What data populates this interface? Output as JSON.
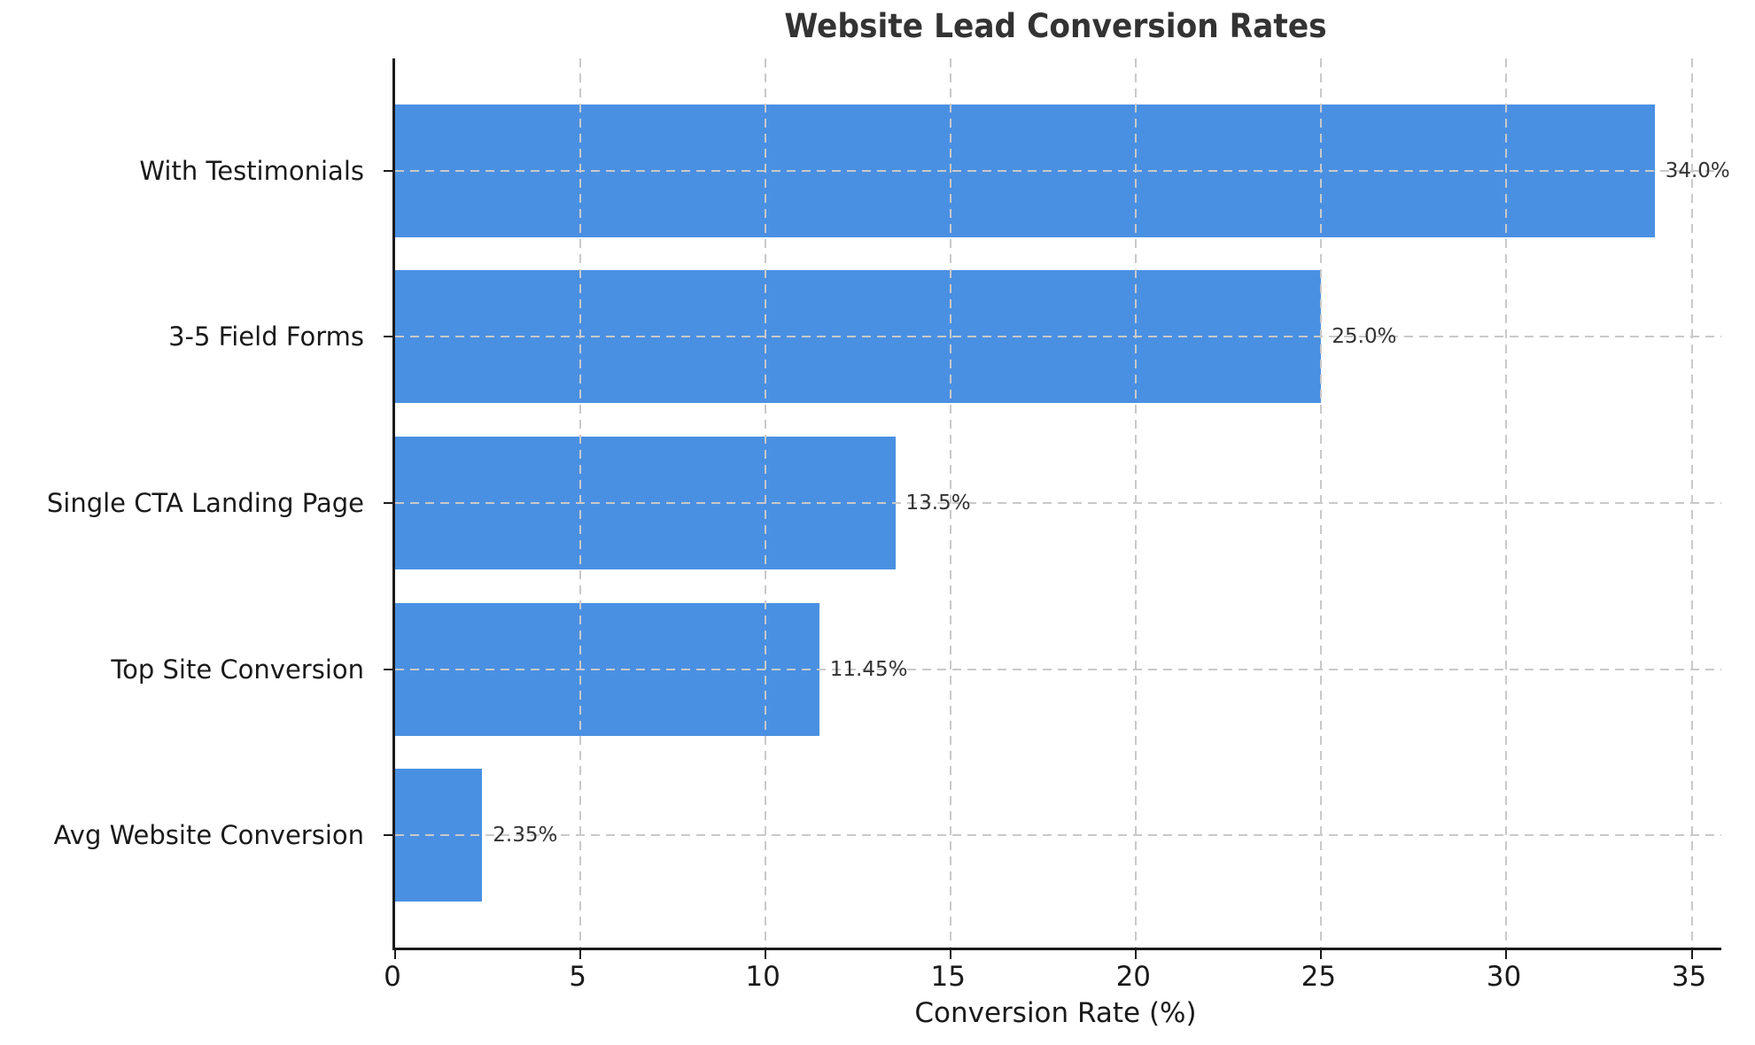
{
  "chart_data": {
    "type": "bar",
    "orientation": "horizontal",
    "title": "Website Lead Conversion Rates",
    "xlabel": "Conversion Rate (%)",
    "ylabel": "",
    "categories": [
      "With Testimonials",
      "3-5 Field Forms",
      "Single CTA Landing Page",
      "Top Site Conversion",
      "Avg Website Conversion"
    ],
    "values": [
      34.0,
      25.0,
      13.5,
      11.45,
      2.35
    ],
    "value_labels": [
      "34.0%",
      "25.0%",
      "13.5%",
      "11.45%",
      "2.35%"
    ],
    "xticks": [
      0,
      5,
      10,
      15,
      20,
      25,
      30,
      35
    ],
    "xtick_labels": [
      "0",
      "5",
      "10",
      "15",
      "20",
      "25",
      "30",
      "35"
    ],
    "xlim": [
      0,
      35.8
    ],
    "grid": "dashed",
    "legend": "none",
    "colors": {
      "bar": "#4a90e2",
      "grid": "#c9c9c9",
      "title": "#333333",
      "tick_label": "#1a1a1a",
      "value_label": "#333333",
      "spine": "#1a1a1a",
      "background": "#ffffff"
    }
  }
}
